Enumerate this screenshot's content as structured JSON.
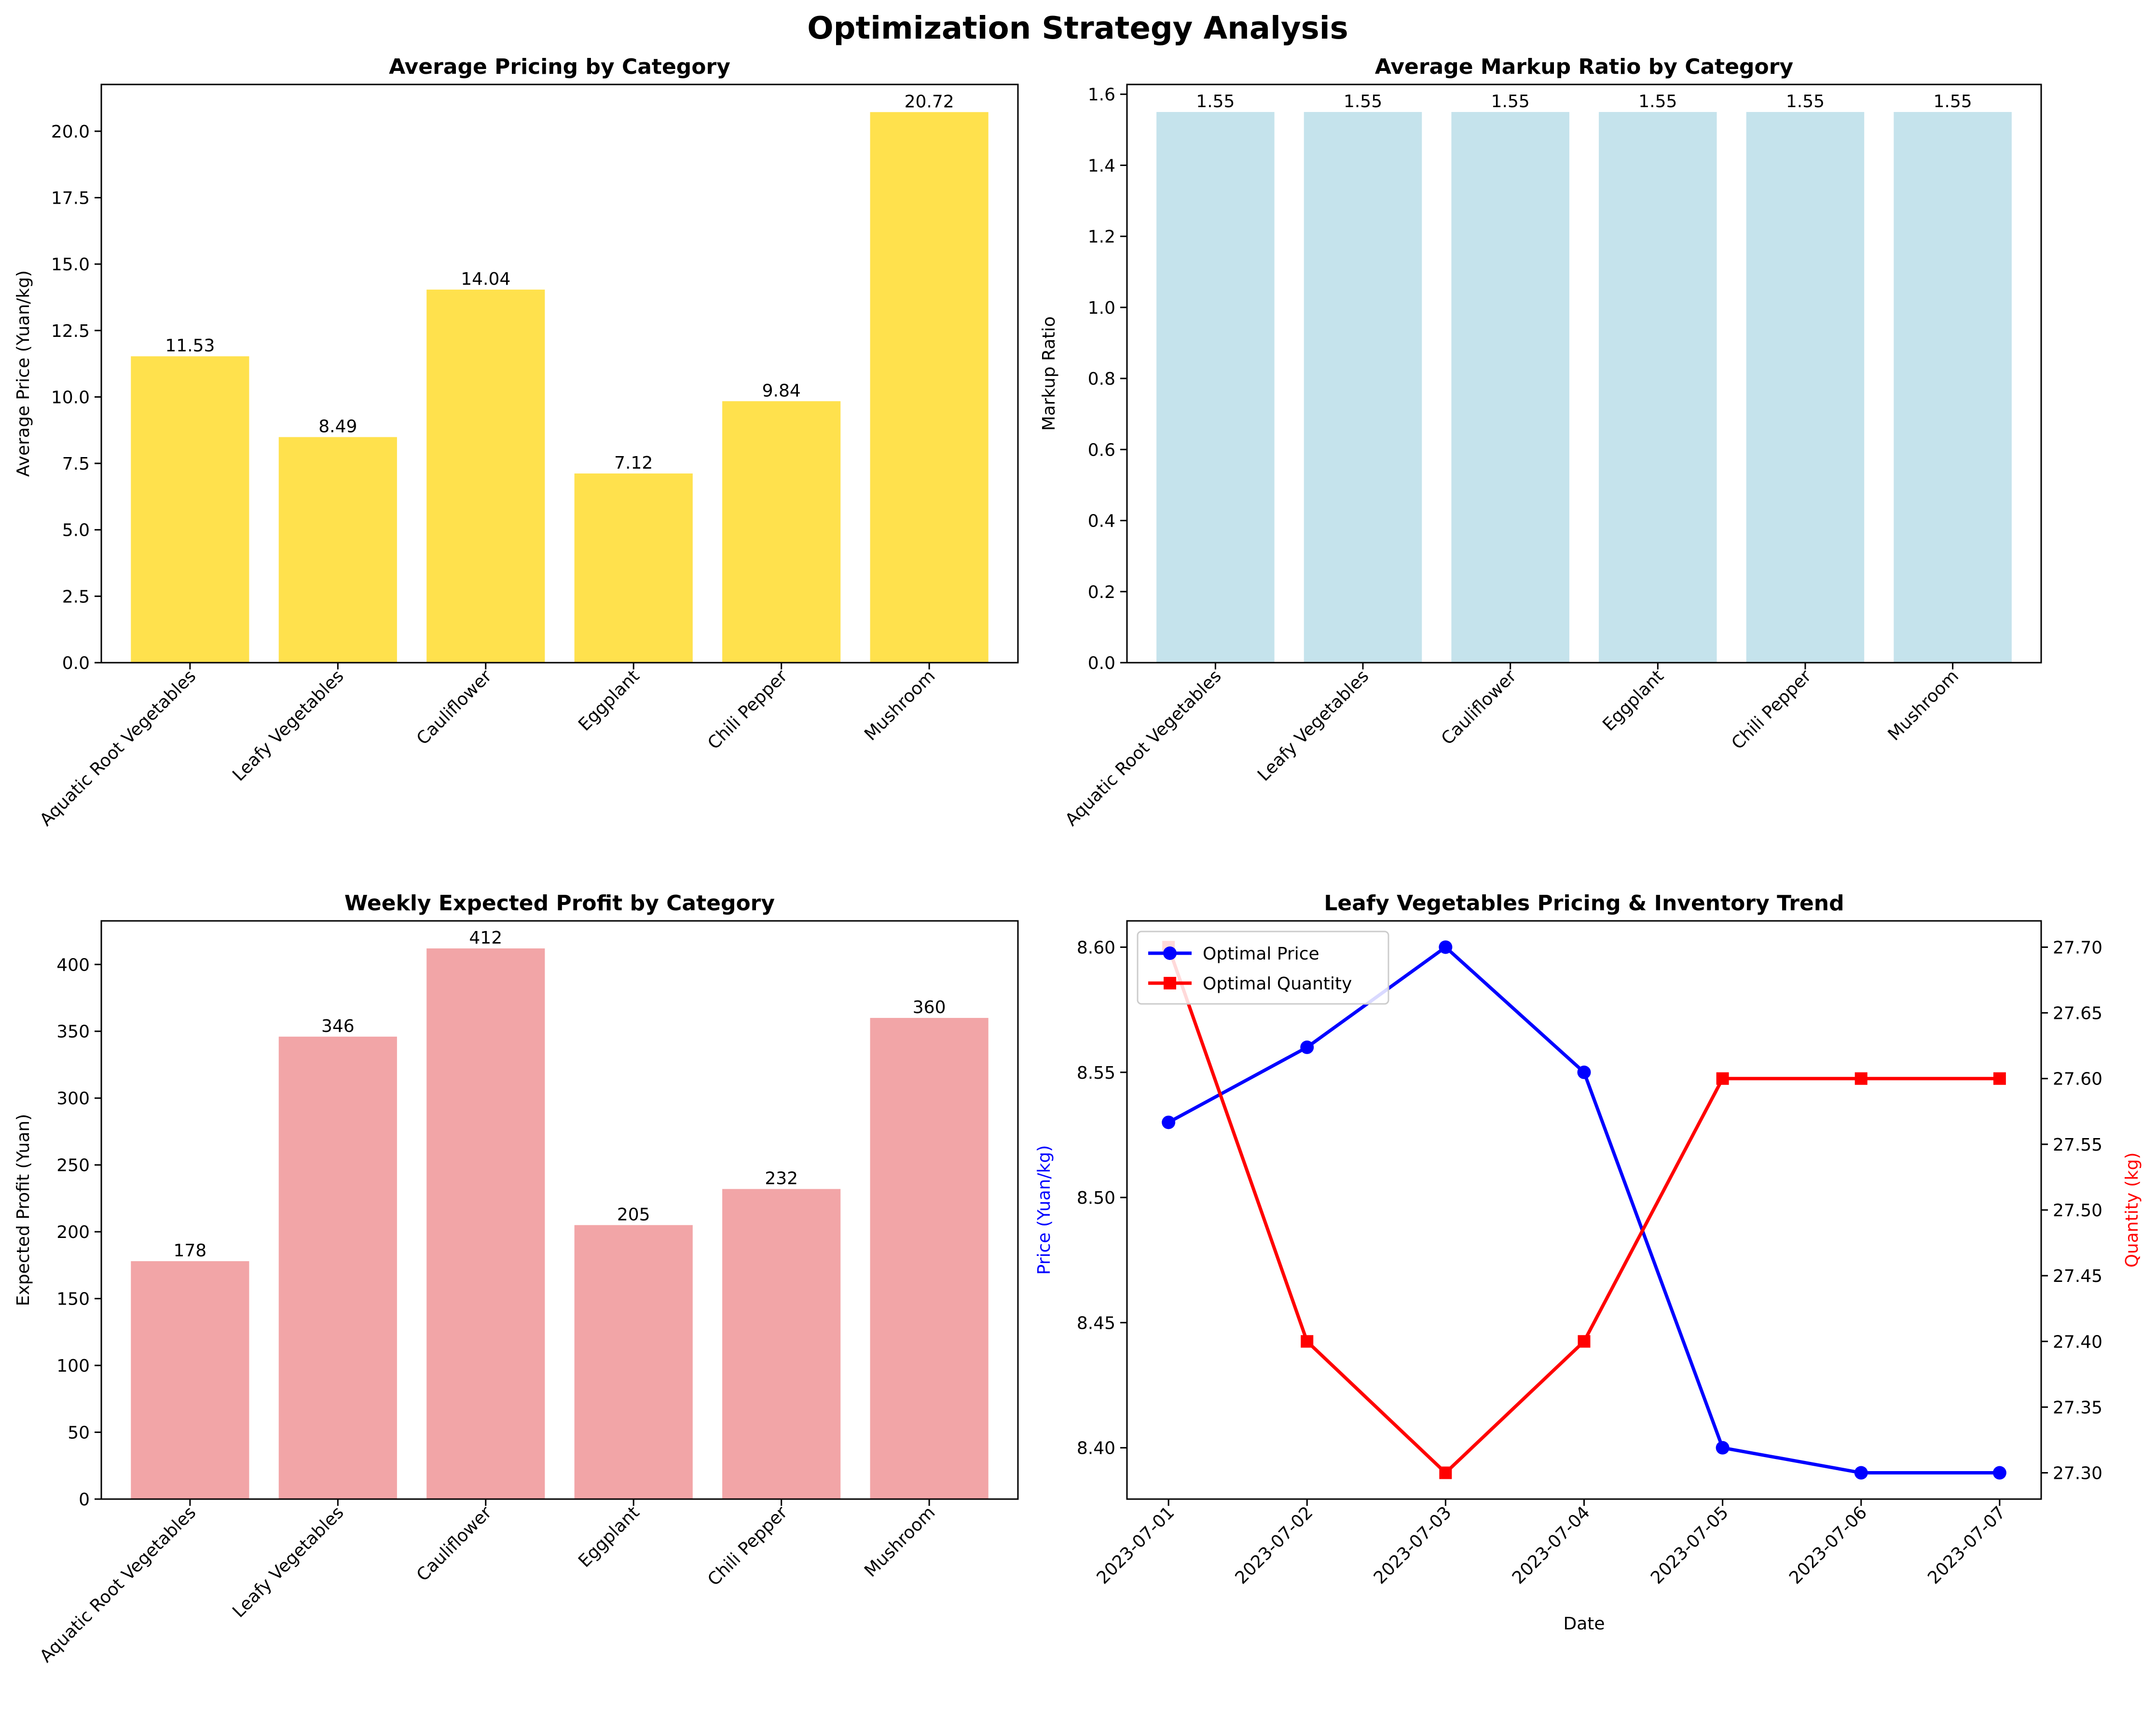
{
  "figure": {
    "title": "Optimization Strategy Analysis"
  },
  "chart_data": [
    {
      "type": "bar",
      "title": "Average Pricing by Category",
      "xlabel": "",
      "ylabel": "Average Price (Yuan/kg)",
      "categories": [
        "Aquatic Root Vegetables",
        "Leafy Vegetables",
        "Cauliflower",
        "Eggplant",
        "Chili Pepper",
        "Mushroom"
      ],
      "values": [
        11.53,
        8.49,
        14.04,
        7.12,
        9.84,
        20.72
      ],
      "labels": [
        "11.53",
        "8.49",
        "14.04",
        "7.12",
        "9.84",
        "20.72"
      ],
      "ylim": [
        0,
        21.76
      ],
      "yticks": [
        0,
        2.5,
        5,
        7.5,
        10,
        12.5,
        15,
        17.5,
        20
      ],
      "ytick_labels": [
        "0.0",
        "2.5",
        "5.0",
        "7.5",
        "10.0",
        "12.5",
        "15.0",
        "17.5",
        "20.0"
      ],
      "color": "#FFE14D",
      "grid": false
    },
    {
      "type": "bar",
      "title": "Average Markup Ratio by Category",
      "xlabel": "",
      "ylabel": "Markup Ratio",
      "categories": [
        "Aquatic Root Vegetables",
        "Leafy Vegetables",
        "Cauliflower",
        "Eggplant",
        "Chili Pepper",
        "Mushroom"
      ],
      "values": [
        1.55,
        1.55,
        1.55,
        1.55,
        1.55,
        1.55
      ],
      "labels": [
        "1.55",
        "1.55",
        "1.55",
        "1.55",
        "1.55",
        "1.55"
      ],
      "ylim": [
        0,
        1.6275
      ],
      "yticks": [
        0,
        0.2,
        0.4,
        0.6,
        0.8,
        1.0,
        1.2,
        1.4,
        1.6
      ],
      "ytick_labels": [
        "0.0",
        "0.2",
        "0.4",
        "0.6",
        "0.8",
        "1.0",
        "1.2",
        "1.4",
        "1.6"
      ],
      "color": "#C5E3EC",
      "grid": false
    },
    {
      "type": "bar",
      "title": "Weekly Expected Profit by Category",
      "xlabel": "",
      "ylabel": "Expected Profit (Yuan)",
      "categories": [
        "Aquatic Root Vegetables",
        "Leafy Vegetables",
        "Cauliflower",
        "Eggplant",
        "Chili Pepper",
        "Mushroom"
      ],
      "values": [
        178,
        346,
        412,
        205,
        232,
        360
      ],
      "labels": [
        "178",
        "346",
        "412",
        "205",
        "232",
        "360"
      ],
      "ylim": [
        0,
        432.6
      ],
      "yticks": [
        0,
        50,
        100,
        150,
        200,
        250,
        300,
        350,
        400
      ],
      "ytick_labels": [
        "0",
        "50",
        "100",
        "150",
        "200",
        "250",
        "300",
        "350",
        "400"
      ],
      "color": "#F2A5A7",
      "grid": false
    },
    {
      "type": "line",
      "title": "Leafy Vegetables Pricing & Inventory Trend",
      "xlabel": "Date",
      "ylabel": "Price (Yuan/kg)",
      "y2label": "Quantity (kg)",
      "x": [
        "2023-07-01",
        "2023-07-02",
        "2023-07-03",
        "2023-07-04",
        "2023-07-05",
        "2023-07-06",
        "2023-07-07"
      ],
      "series": [
        {
          "name": "Optimal Price",
          "axis": "left",
          "values": [
            8.53,
            8.56,
            8.6,
            8.55,
            8.4,
            8.39,
            8.39
          ],
          "color": "#0000FF",
          "marker": "circle"
        },
        {
          "name": "Optimal Quantity",
          "axis": "right",
          "values": [
            27.7,
            27.4,
            27.3,
            27.4,
            27.6,
            27.6,
            27.6
          ],
          "color": "#FF0000",
          "marker": "square"
        }
      ],
      "ylim": [
        8.3795,
        8.6105
      ],
      "yticks": [
        8.4,
        8.45,
        8.5,
        8.55,
        8.6
      ],
      "ytick_labels": [
        "8.40",
        "8.45",
        "8.50",
        "8.55",
        "8.60"
      ],
      "y2lim": [
        27.28,
        27.72
      ],
      "y2ticks": [
        27.3,
        27.35,
        27.4,
        27.45,
        27.5,
        27.55,
        27.6,
        27.65,
        27.7
      ],
      "y2tick_labels": [
        "27.30",
        "27.35",
        "27.40",
        "27.45",
        "27.50",
        "27.55",
        "27.60",
        "27.65",
        "27.70"
      ],
      "legend": "top-left",
      "grid": false
    }
  ]
}
